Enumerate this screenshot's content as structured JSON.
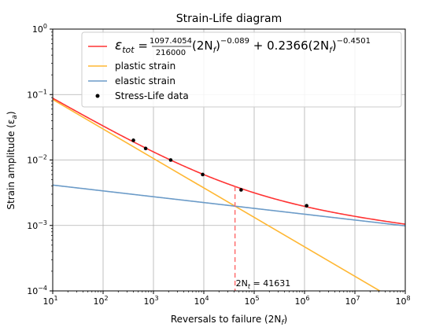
{
  "chart_data": {
    "type": "line",
    "title": "Strain-Life diagram",
    "xlabel": "Reversals to failure (2N",
    "xlabel_sub": "f",
    "xlabel_close": ")",
    "ylabel": "Strain amplitude (ε",
    "ylabel_sub": "a",
    "ylabel_close": ")",
    "xscale": "log",
    "yscale": "log",
    "xlim": [
      10,
      100000000
    ],
    "ylim": [
      0.0001,
      1
    ],
    "x_ticks": [
      {
        "base": "10",
        "exp": "1"
      },
      {
        "base": "10",
        "exp": "2"
      },
      {
        "base": "10",
        "exp": "3"
      },
      {
        "base": "10",
        "exp": "4"
      },
      {
        "base": "10",
        "exp": "5"
      },
      {
        "base": "10",
        "exp": "6"
      },
      {
        "base": "10",
        "exp": "7"
      },
      {
        "base": "10",
        "exp": "8"
      }
    ],
    "y_ticks": [
      {
        "base": "10",
        "exp": "−4"
      },
      {
        "base": "10",
        "exp": "−3"
      },
      {
        "base": "10",
        "exp": "−2"
      },
      {
        "base": "10",
        "exp": "−1"
      },
      {
        "base": "10",
        "exp": "0"
      }
    ],
    "grid": true,
    "legend_position": "top-right",
    "series": [
      {
        "name_parts": {
          "eps": "ε",
          "eps_sub": "tot",
          "eq": " = ",
          "num": "1097.4054",
          "den": "216000",
          "term1": "(2N",
          "term1_sub": "f",
          "term1_close": ")",
          "exp1": "−0.089",
          "term2": " + 0.2366(2N",
          "term2_sub": "f",
          "term2_close": ")",
          "exp2": "−0.4501"
        },
        "color": "#ff3333",
        "coefficient_a": 0.0050806,
        "exponent_a": -0.089,
        "coefficient_b": 0.2366,
        "exponent_b": -0.4501,
        "curve": "sum"
      },
      {
        "name": "plastic strain",
        "color": "#ffb733",
        "coefficient": 0.2366,
        "exponent": -0.4501,
        "curve": "power"
      },
      {
        "name": "elastic strain",
        "color": "#6b9bc8",
        "coefficient": 0.0050806,
        "exponent": -0.089,
        "curve": "power"
      }
    ],
    "scatter": {
      "name": "Stress-Life data",
      "color": "#000000",
      "x": [
        400,
        700,
        2200,
        9500,
        55000,
        1100000
      ],
      "y": [
        0.02,
        0.015,
        0.01,
        0.006,
        0.0035,
        0.002
      ]
    },
    "transition": {
      "x": 41631,
      "label": "2N",
      "label_sub": "t",
      "label_value": " = 41631",
      "color": "#ff6666"
    }
  }
}
